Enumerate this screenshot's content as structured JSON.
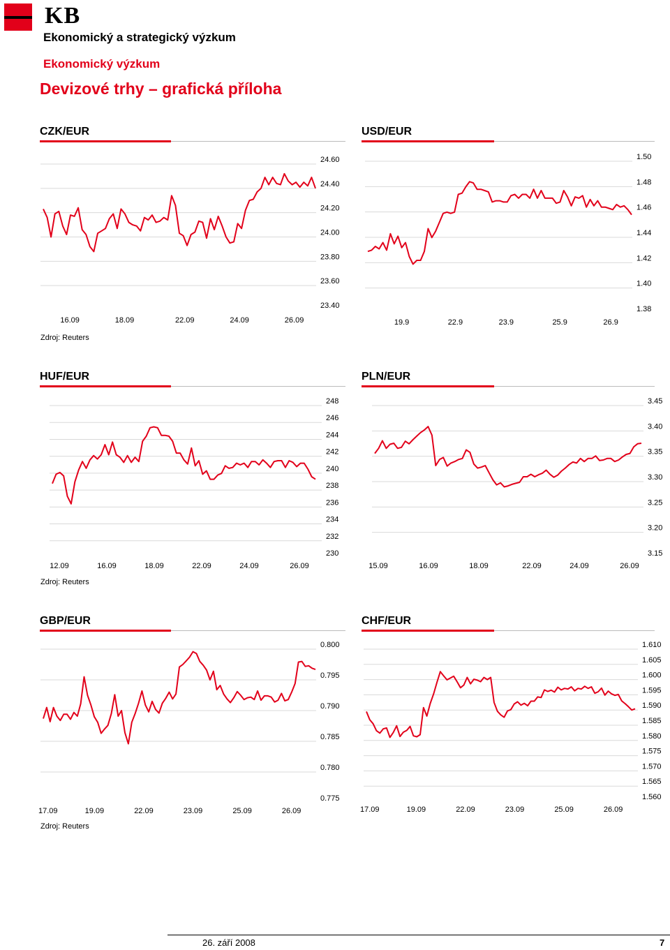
{
  "header": {
    "logo_text": "KB",
    "organization": "Ekonomický a strategický výzkum",
    "department": "Ekonomický výzkum",
    "title": "Devizové trhy – grafická příloha"
  },
  "sources": [
    "Zdroj: Reuters",
    "Zdroj: Reuters",
    "Zdroj: Reuters"
  ],
  "footer": {
    "date": "26. září 2008",
    "page": "7"
  },
  "colors": {
    "accent": "#e2001a",
    "series": "#e2001a",
    "grid": "#d9d9d9"
  },
  "chart_data": [
    {
      "type": "line",
      "title": "CZK/EUR",
      "x_ticks": [
        "16.09",
        "18.09",
        "22.09",
        "24.09",
        "26.09"
      ],
      "x_tick_pos": [
        0.11,
        0.31,
        0.53,
        0.73,
        0.93
      ],
      "y_ticks": [
        "24.60",
        "24.40",
        "24.20",
        "24.00",
        "23.80",
        "23.60",
        "23.40"
      ],
      "ylim": [
        23.4,
        24.6
      ],
      "grid": true,
      "series": [
        {
          "values": [
            24.19,
            24.12,
            23.96,
            24.15,
            24.17,
            24.05,
            23.98,
            24.14,
            24.13,
            24.2,
            24.02,
            23.98,
            23.88,
            23.84,
            23.99,
            24.01,
            24.03,
            24.11,
            24.15,
            24.03,
            24.19,
            24.15,
            24.08,
            24.06,
            24.05,
            24.01,
            24.12,
            24.1,
            24.14,
            24.08,
            24.09,
            24.12,
            24.1,
            24.3,
            24.22,
            23.99,
            23.97,
            23.89,
            23.98,
            24.0,
            24.09,
            24.08,
            23.95,
            24.11,
            24.02,
            24.13,
            24.05,
            23.96,
            23.91,
            23.92,
            24.07,
            24.03,
            24.18,
            24.26,
            24.27,
            24.33,
            24.36,
            24.45,
            24.39,
            24.45,
            24.4,
            24.39,
            24.48,
            24.42,
            24.39,
            24.41,
            24.37,
            24.41,
            24.38,
            24.45,
            24.36
          ]
        }
      ]
    },
    {
      "type": "line",
      "title": "USD/EUR",
      "x_ticks": [
        "19.9",
        "22.9",
        "23.9",
        "25.9",
        "26.9"
      ],
      "x_tick_pos": [
        0.15,
        0.35,
        0.54,
        0.74,
        0.93
      ],
      "y_ticks": [
        "1.50",
        "1.48",
        "1.46",
        "1.44",
        "1.42",
        "1.40",
        "1.38"
      ],
      "ylim": [
        1.38,
        1.5
      ],
      "grid": true,
      "series": [
        {
          "values": [
            1.425,
            1.426,
            1.429,
            1.427,
            1.432,
            1.426,
            1.439,
            1.431,
            1.437,
            1.428,
            1.432,
            1.421,
            1.415,
            1.418,
            1.418,
            1.425,
            1.443,
            1.436,
            1.441,
            1.448,
            1.455,
            1.456,
            1.455,
            1.456,
            1.47,
            1.471,
            1.476,
            1.48,
            1.479,
            1.474,
            1.474,
            1.473,
            1.472,
            1.464,
            1.465,
            1.465,
            1.464,
            1.464,
            1.469,
            1.47,
            1.467,
            1.47,
            1.47,
            1.467,
            1.474,
            1.467,
            1.473,
            1.467,
            1.467,
            1.467,
            1.463,
            1.464,
            1.473,
            1.468,
            1.461,
            1.468,
            1.467,
            1.469,
            1.46,
            1.466,
            1.461,
            1.465,
            1.46,
            1.46,
            1.459,
            1.458,
            1.462,
            1.46,
            1.461,
            1.458,
            1.454
          ]
        }
      ]
    },
    {
      "type": "line",
      "title": "HUF/EUR",
      "x_ticks": [
        "12.09",
        "16.09",
        "18.09",
        "22.09",
        "24.09",
        "26.09"
      ],
      "x_tick_pos": [
        0.07,
        0.24,
        0.41,
        0.58,
        0.75,
        0.93
      ],
      "y_ticks": [
        "248",
        "246",
        "244",
        "242",
        "240",
        "238",
        "236",
        "234",
        "232",
        "230"
      ],
      "ylim": [
        230,
        248
      ],
      "grid": true,
      "series": [
        {
          "values": [
            238.2,
            239.3,
            239.5,
            239.1,
            236.7,
            235.8,
            238.4,
            239.8,
            240.8,
            240.0,
            241.0,
            241.5,
            241.1,
            241.6,
            242.8,
            241.6,
            243.1,
            241.6,
            241.3,
            240.7,
            241.5,
            240.7,
            241.3,
            240.8,
            243.2,
            243.8,
            244.8,
            244.9,
            244.8,
            243.9,
            243.9,
            243.8,
            243.2,
            241.8,
            241.8,
            241.0,
            240.5,
            242.4,
            240.3,
            240.9,
            239.3,
            239.7,
            238.7,
            238.7,
            239.2,
            239.4,
            240.3,
            240.0,
            240.1,
            240.6,
            240.4,
            240.6,
            240.1,
            240.8,
            240.8,
            240.4,
            241.0,
            240.6,
            240.1,
            240.8,
            240.9,
            240.9,
            240.1,
            240.9,
            240.7,
            240.2,
            240.6,
            240.6,
            239.9,
            239.0,
            238.7
          ]
        }
      ]
    },
    {
      "type": "line",
      "title": "PLN/EUR",
      "x_ticks": [
        "15.09",
        "16.09",
        "18.09",
        "22.09",
        "24.09",
        "26.09"
      ],
      "x_tick_pos": [
        0.06,
        0.24,
        0.42,
        0.61,
        0.78,
        0.96
      ],
      "y_ticks": [
        "3.45",
        "3.40",
        "3.35",
        "3.30",
        "3.25",
        "3.20",
        "3.15"
      ],
      "ylim": [
        3.15,
        3.45
      ],
      "grid": true,
      "series": [
        {
          "values": [
            3.346,
            3.356,
            3.371,
            3.356,
            3.364,
            3.366,
            3.356,
            3.358,
            3.37,
            3.365,
            3.373,
            3.38,
            3.387,
            3.392,
            3.399,
            3.382,
            3.322,
            3.334,
            3.338,
            3.321,
            3.327,
            3.33,
            3.334,
            3.336,
            3.353,
            3.348,
            3.325,
            3.317,
            3.319,
            3.322,
            3.308,
            3.294,
            3.284,
            3.288,
            3.28,
            3.282,
            3.285,
            3.287,
            3.289,
            3.3,
            3.3,
            3.305,
            3.3,
            3.304,
            3.307,
            3.313,
            3.305,
            3.299,
            3.303,
            3.311,
            3.317,
            3.324,
            3.329,
            3.327,
            3.336,
            3.33,
            3.336,
            3.336,
            3.341,
            3.332,
            3.333,
            3.336,
            3.336,
            3.33,
            3.333,
            3.339,
            3.344,
            3.346,
            3.359,
            3.365,
            3.366
          ]
        }
      ]
    },
    {
      "type": "line",
      "title": "GBP/EUR",
      "x_ticks": [
        "17.09",
        "19.09",
        "22.09",
        "23.09",
        "25.09",
        "26.09"
      ],
      "x_tick_pos": [
        0.03,
        0.2,
        0.38,
        0.56,
        0.74,
        0.92
      ],
      "y_ticks": [
        "0.800",
        "0.795",
        "0.790",
        "0.785",
        "0.780",
        "0.775"
      ],
      "ylim": [
        0.775,
        0.8
      ],
      "grid": true,
      "series": [
        {
          "values": [
            0.7879,
            0.7897,
            0.7874,
            0.7897,
            0.7883,
            0.7876,
            0.7886,
            0.7886,
            0.7878,
            0.7889,
            0.7883,
            0.7903,
            0.7947,
            0.7917,
            0.7901,
            0.7882,
            0.7873,
            0.7855,
            0.7862,
            0.7868,
            0.7887,
            0.7918,
            0.7883,
            0.7892,
            0.7856,
            0.7838,
            0.7873,
            0.7887,
            0.7904,
            0.7924,
            0.7901,
            0.789,
            0.7907,
            0.7894,
            0.7888,
            0.7904,
            0.7912,
            0.7922,
            0.7911,
            0.7919,
            0.7963,
            0.7967,
            0.7973,
            0.7979,
            0.7988,
            0.7985,
            0.7972,
            0.7966,
            0.7958,
            0.7942,
            0.7956,
            0.7926,
            0.7933,
            0.7919,
            0.7911,
            0.7905,
            0.7913,
            0.7923,
            0.7917,
            0.791,
            0.7913,
            0.7914,
            0.791,
            0.7924,
            0.7909,
            0.7916,
            0.7916,
            0.7914,
            0.7906,
            0.7909,
            0.792,
            0.7908,
            0.791,
            0.7922,
            0.7936,
            0.7971,
            0.7972,
            0.7964,
            0.7965,
            0.7961,
            0.7959
          ]
        }
      ]
    },
    {
      "type": "line",
      "title": "CHF/EUR",
      "x_ticks": [
        "17.09",
        "19.09",
        "22.09",
        "23.09",
        "25.09",
        "26.09"
      ],
      "x_tick_pos": [
        0.03,
        0.2,
        0.38,
        0.56,
        0.74,
        0.92
      ],
      "y_ticks": [
        "1.610",
        "1.605",
        "1.600",
        "1.595",
        "1.590",
        "1.585",
        "1.580",
        "1.575",
        "1.570",
        "1.565",
        "1.560"
      ],
      "ylim": [
        1.56,
        1.61
      ],
      "grid": true,
      "series": [
        {
          "values": [
            1.5879,
            1.5852,
            1.5839,
            1.5816,
            1.5808,
            1.5822,
            1.5825,
            1.5794,
            1.581,
            1.5832,
            1.5797,
            1.5811,
            1.5817,
            1.583,
            1.5799,
            1.5796,
            1.5803,
            1.5892,
            1.5864,
            1.5905,
            1.5937,
            1.5975,
            1.601,
            1.5996,
            1.5983,
            1.5989,
            1.5995,
            1.5977,
            1.5957,
            1.5966,
            1.5991,
            1.597,
            1.5985,
            1.5982,
            1.5977,
            1.5991,
            1.5984,
            1.5991,
            1.5909,
            1.588,
            1.5868,
            1.586,
            1.5881,
            1.5885,
            1.5904,
            1.5911,
            1.59,
            1.5906,
            1.5898,
            1.5913,
            1.5913,
            1.5927,
            1.5925,
            1.595,
            1.5945,
            1.5949,
            1.5943,
            1.5959,
            1.595,
            1.5955,
            1.5953,
            1.596,
            1.5947,
            1.5955,
            1.5953,
            1.5962,
            1.5955,
            1.596,
            1.5939,
            1.5944,
            1.5956,
            1.5933,
            1.5946,
            1.5937,
            1.5932,
            1.5935,
            1.5914,
            1.5905,
            1.5895,
            1.5884,
            1.5888
          ]
        }
      ]
    }
  ]
}
